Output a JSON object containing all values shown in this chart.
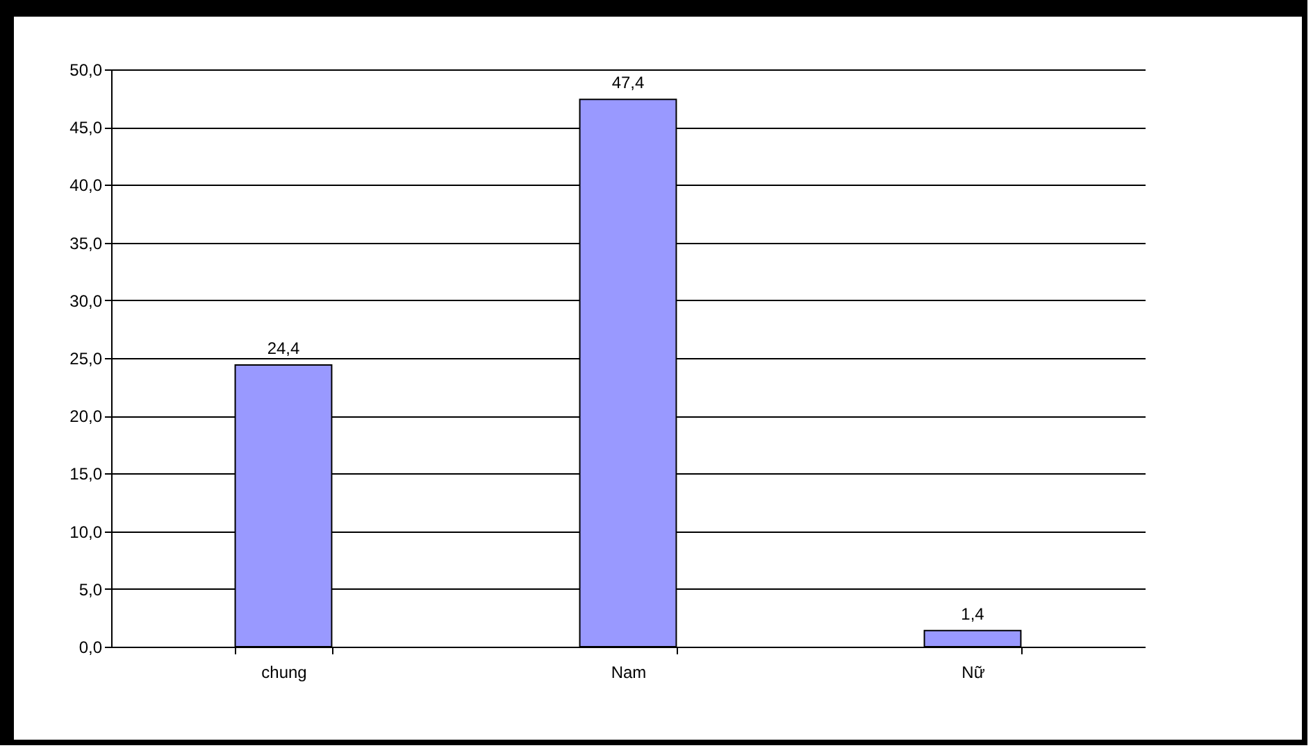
{
  "chart_data": {
    "type": "bar",
    "categories": [
      "chung",
      "Nam",
      "Nữ"
    ],
    "values": [
      24.4,
      47.4,
      1.4
    ],
    "color": "#9999ff",
    "value_labels": [
      "24,4",
      "47,4",
      "1,4"
    ],
    "ylim": [
      0,
      50
    ],
    "yticks": [
      {
        "value": 0,
        "label": "0,0"
      },
      {
        "value": 5,
        "label": "5,0"
      },
      {
        "value": 10,
        "label": "10,0"
      },
      {
        "value": 15,
        "label": "15,0"
      },
      {
        "value": 20,
        "label": "20,0"
      },
      {
        "value": 25,
        "label": "25,0"
      },
      {
        "value": 30,
        "label": "30,0"
      },
      {
        "value": 35,
        "label": "35,0"
      },
      {
        "value": 40,
        "label": "40,0"
      },
      {
        "value": 45,
        "label": "45,0"
      },
      {
        "value": 50,
        "label": "50,0"
      }
    ],
    "grid": "y"
  }
}
